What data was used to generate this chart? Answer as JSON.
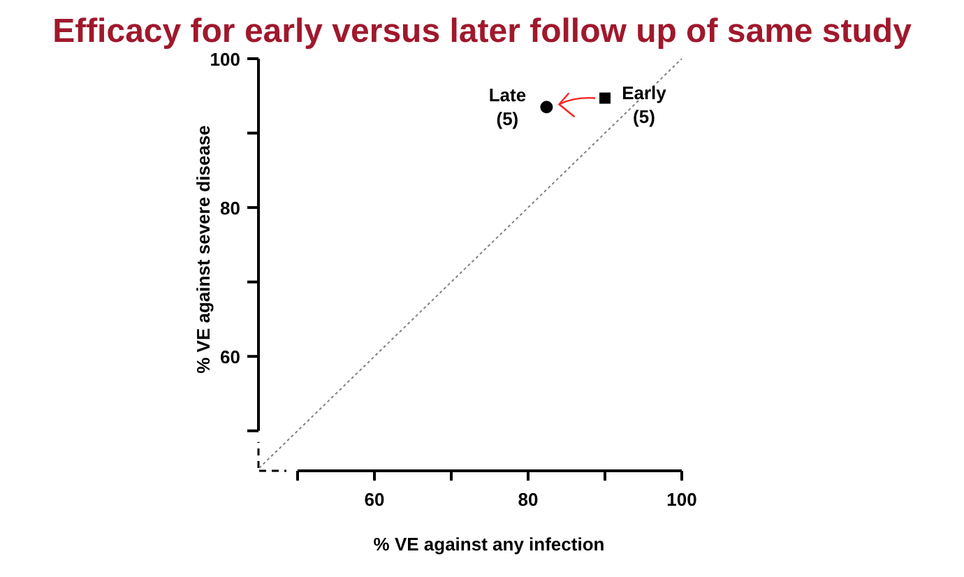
{
  "chart_data": {
    "type": "scatter",
    "title": "Efficacy for early versus later follow up of same study",
    "xlabel": "% VE against any infection",
    "ylabel": "% VE against severe disease",
    "xlim": [
      45,
      100
    ],
    "ylim": [
      45,
      100
    ],
    "xticks": [
      {
        "value": 50,
        "label": null
      },
      60,
      {
        "value": 70,
        "label": null
      },
      80,
      {
        "value": 90,
        "label": null
      },
      100
    ],
    "yticks": [
      {
        "value": 50,
        "label": null
      },
      60,
      {
        "value": 70,
        "label": null
      },
      80,
      {
        "value": 90,
        "label": null
      },
      100
    ],
    "series": [
      {
        "type": "line",
        "x": [
          45,
          100
        ],
        "values": [
          45,
          100
        ],
        "color": "#808080",
        "line_style": "dotted"
      },
      {
        "x": [
          90
        ],
        "values": [
          94.7
        ],
        "color": "#000000",
        "marker": "square"
      },
      {
        "x": [
          82.4
        ],
        "values": [
          93.5
        ],
        "color": "#000000",
        "marker": "circle"
      }
    ],
    "annotations": [
      {
        "text": "Early\n(5)",
        "x": 90,
        "y": 94.7
      },
      {
        "text": "Late\n(5)",
        "x": 82.4,
        "y": 93.5
      }
    ]
  }
}
